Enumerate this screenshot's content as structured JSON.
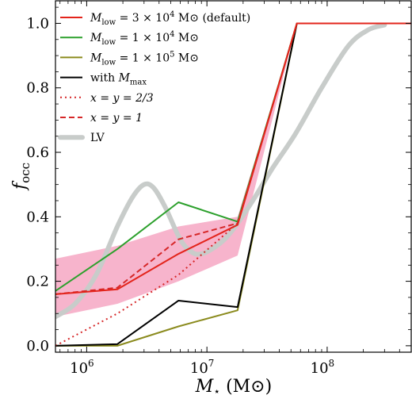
{
  "chart_data": {
    "type": "line",
    "x_scale": "log",
    "xlim": [
      550000,
      500000000
    ],
    "ylim": [
      -0.02,
      1.07
    ],
    "xlabel": "M⋆ (M⊙)",
    "ylabel": "f_occ",
    "ylabel_main": "f",
    "ylabel_sub": "occ",
    "xlabel_main": "M",
    "xlabel_sub": "⋆",
    "xlabel_unit": " (M⊙)",
    "x_ticks": [
      {
        "value": 1000000,
        "base": "10",
        "exp": "6"
      },
      {
        "value": 10000000,
        "base": "10",
        "exp": "7"
      },
      {
        "value": 100000000,
        "base": "10",
        "exp": "8"
      }
    ],
    "y_ticks": [
      {
        "value": 0.0,
        "label": "0.0"
      },
      {
        "value": 0.2,
        "label": "0.2"
      },
      {
        "value": 0.4,
        "label": "0.4"
      },
      {
        "value": 0.6,
        "label": "0.6"
      },
      {
        "value": 0.8,
        "label": "0.8"
      },
      {
        "value": 1.0,
        "label": "1.0"
      }
    ],
    "band": {
      "color": "#f7b4cc",
      "x": [
        550000,
        1800000,
        5800000,
        18000000,
        56000000
      ],
      "lower": [
        0.09,
        0.13,
        0.2,
        0.28,
        1.0
      ],
      "upper": [
        0.27,
        0.31,
        0.37,
        0.4,
        1.0
      ]
    },
    "series": [
      {
        "name": "LV",
        "legend": "LV",
        "color": "#c8ccca",
        "width": 6,
        "dash": "solid",
        "smooth": true,
        "x": [
          550000,
          800000,
          1200000,
          1800000,
          2400000,
          3000000,
          3600000,
          4500000,
          6000000,
          7500000,
          9000000,
          11000000,
          14000000,
          18000000,
          25000000,
          35000000,
          55000000,
          90000000,
          150000000,
          220000000,
          300000000
        ],
        "y": [
          0.09,
          0.13,
          0.22,
          0.37,
          0.46,
          0.5,
          0.49,
          0.43,
          0.33,
          0.29,
          0.285,
          0.3,
          0.33,
          0.38,
          0.46,
          0.55,
          0.66,
          0.8,
          0.93,
          0.98,
          0.995
        ]
      },
      {
        "name": "Mlow = 1 × 10^4",
        "legend_main": "M",
        "legend_sub": "low",
        "legend_rest": " = 1 × 10",
        "legend_exp": "4",
        "legend_unit": " M⊙",
        "color": "#2ca02c",
        "width": 2,
        "dash": "solid",
        "x": [
          550000,
          1800000,
          5800000,
          18000000,
          56000000,
          500000000
        ],
        "y": [
          0.17,
          0.3,
          0.445,
          0.385,
          1.0,
          1.0
        ]
      },
      {
        "name": "Mlow = 1 × 10^5",
        "legend_main": "M",
        "legend_sub": "low",
        "legend_rest": " = 1 × 10",
        "legend_exp": "5",
        "legend_unit": " M⊙",
        "color": "#8b8b1e",
        "width": 2,
        "dash": "solid",
        "x": [
          550000,
          1800000,
          5800000,
          18000000,
          56000000,
          500000000
        ],
        "y": [
          0.0,
          0.0,
          0.06,
          0.11,
          1.0,
          1.0
        ]
      },
      {
        "name": "with Mmax",
        "legend_main": "with ",
        "legend_it": "M",
        "legend_sub": "max",
        "color": "#000000",
        "width": 2,
        "dash": "solid",
        "x": [
          550000,
          1800000,
          5800000,
          18000000,
          56000000,
          500000000
        ],
        "y": [
          0.0,
          0.005,
          0.14,
          0.12,
          1.0,
          1.0
        ]
      },
      {
        "name": "x = y = 2/3",
        "legend_text": "x = y = 2/3",
        "color": "#d62728",
        "width": 2,
        "dash": "2,4",
        "x": [
          550000,
          1800000,
          5800000,
          18000000,
          56000000,
          500000000
        ],
        "y": [
          0.0,
          0.1,
          0.22,
          0.38,
          1.0,
          1.0
        ]
      },
      {
        "name": "x = y = 1",
        "legend_text": "x = y = 1",
        "color": "#d62728",
        "width": 2,
        "dash": "7,4",
        "x": [
          550000,
          1800000,
          5800000,
          18000000,
          56000000,
          500000000
        ],
        "y": [
          0.16,
          0.18,
          0.33,
          0.38,
          1.0,
          1.0
        ]
      },
      {
        "name": "Mlow = 3 × 10^4 (default)",
        "legend_main": "M",
        "legend_sub": "low",
        "legend_rest": " = 3 × 10",
        "legend_exp": "4",
        "legend_unit": " M⊙ (default)",
        "color": "#e3241b",
        "width": 2,
        "dash": "solid",
        "x": [
          550000,
          1800000,
          5800000,
          18000000,
          56000000,
          500000000
        ],
        "y": [
          0.16,
          0.175,
          0.285,
          0.375,
          1.0,
          1.0
        ]
      }
    ],
    "legend_order": [
      6,
      1,
      2,
      3,
      4,
      5,
      0
    ],
    "legend_position": "top-left"
  }
}
